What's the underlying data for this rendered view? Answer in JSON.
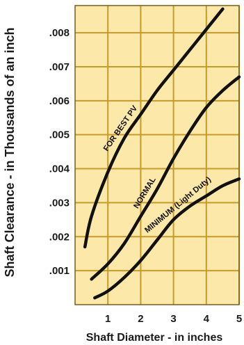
{
  "chart_data": {
    "type": "line",
    "xlabel": "Shaft Diameter - in inches",
    "ylabel": "Shaft Clearance - in Thousands of an inch",
    "xlim": [
      0,
      5
    ],
    "ylim": [
      0,
      0.0088
    ],
    "x_ticks": [
      "1",
      "2",
      "3",
      "4",
      "5"
    ],
    "y_ticks": [
      ".001",
      ".002",
      ".003",
      ".004",
      ".005",
      ".006",
      ".007",
      ".008"
    ],
    "grid": true,
    "colors": {
      "background": "#fce8a8",
      "grid": "#c89a2a",
      "border": "#7a5c1a",
      "line": "#111111"
    },
    "series": [
      {
        "name": "FOR BEST PV",
        "x": [
          0.3,
          0.5,
          1.0,
          1.5,
          2.0,
          2.5,
          3.0,
          3.5,
          4.0,
          4.5
        ],
        "y": [
          0.0017,
          0.0026,
          0.0039,
          0.0049,
          0.0056,
          0.0063,
          0.0069,
          0.0075,
          0.0081,
          0.0087
        ]
      },
      {
        "name": "NORMAL",
        "x": [
          0.5,
          1.0,
          1.5,
          2.0,
          2.5,
          3.0,
          3.5,
          4.0,
          4.5,
          5.0
        ],
        "y": [
          0.00075,
          0.0012,
          0.0018,
          0.0026,
          0.0034,
          0.0043,
          0.0051,
          0.0058,
          0.0063,
          0.0067
        ]
      },
      {
        "name": "MINIMUM (Light Duty)",
        "x": [
          0.6,
          1.0,
          1.5,
          2.0,
          2.5,
          3.0,
          3.5,
          4.0,
          4.5,
          5.0
        ],
        "y": [
          0.0002,
          0.0004,
          0.0008,
          0.0013,
          0.0019,
          0.0025,
          0.0029,
          0.0032,
          0.0035,
          0.0037
        ]
      }
    ]
  }
}
